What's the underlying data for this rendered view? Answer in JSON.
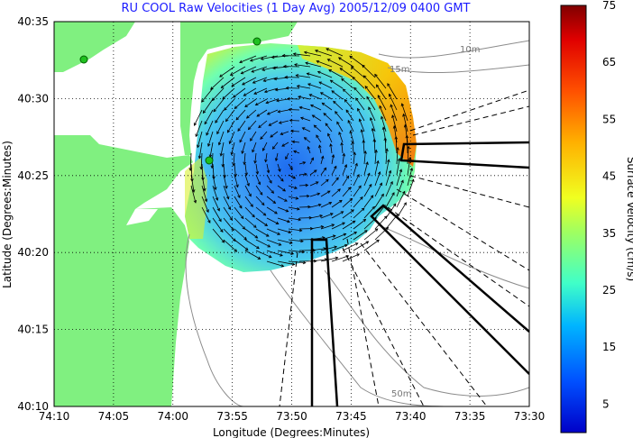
{
  "chart_data": {
    "type": "heatmap",
    "title": "RU COOL Raw Velocities (1 Day Avg) 2005/12/09 0400 GMT",
    "xlabel": "Longitude (Degrees:Minutes)",
    "ylabel": "Latitude (Degrees:Minutes)",
    "x_tick_labels": [
      "74:10",
      "74:05",
      "74:00",
      "73:55",
      "73:50",
      "73:45",
      "73:40",
      "73:35",
      "73:30"
    ],
    "y_tick_labels": [
      "40:35",
      "40:30",
      "40:25",
      "40:20",
      "40:15",
      "40:10"
    ],
    "xlim_minutes_west": [
      10,
      -30
    ],
    "ylim_minutes_north": [
      10,
      35
    ],
    "colorbar": {
      "label": "Surface Velocity (cm/s)",
      "min": 0,
      "max": 75,
      "ticks": [
        "75",
        "65",
        "55",
        "45",
        "35",
        "25",
        "15",
        "5"
      ]
    },
    "contour_labels": [
      "10m",
      "15m",
      "50m"
    ],
    "grid": true,
    "field_summary": {
      "min_speed_cm_s": 5,
      "max_speed_cm_s": 55,
      "high_speed_region": "northeast edge of coverage",
      "low_speed_region": "center of coverage"
    }
  }
}
